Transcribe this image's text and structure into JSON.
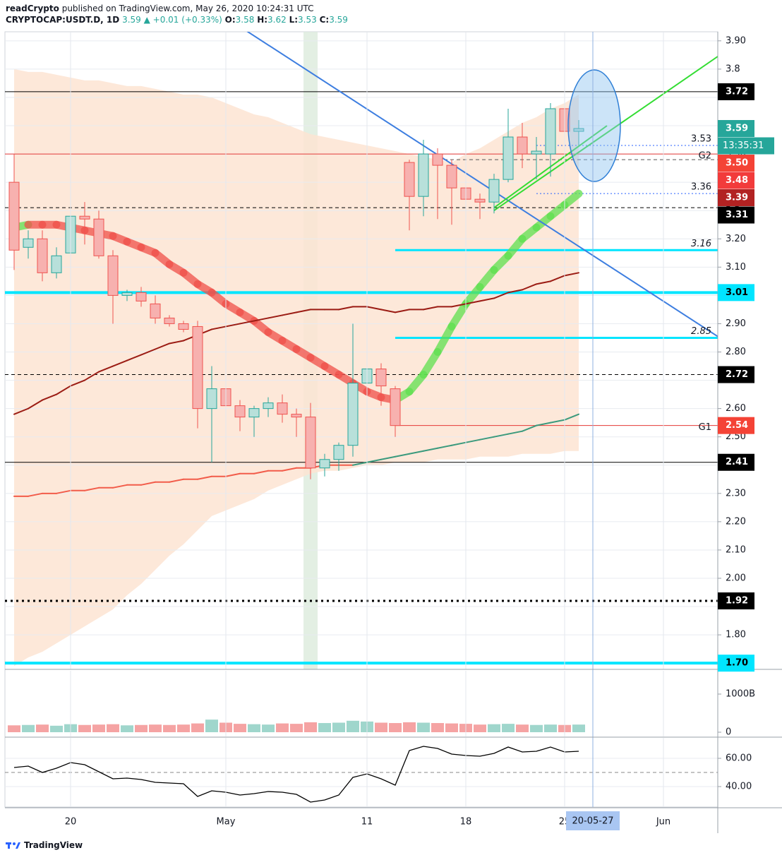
{
  "header": {
    "author": "readCrypto",
    "published": "published on TradingView.com, May 26, 2020 10:24:31 UTC",
    "symbol": "CRYPTOCAP:USDT.D, 1D",
    "last": 3.59,
    "change": {
      "value": 0.01,
      "label": "+0.01"
    },
    "change_pct": {
      "value": 0.33,
      "label": "(+0.33%)"
    },
    "ohlc": [
      {
        "name": "O:",
        "value": 3.58
      },
      {
        "name": "H:",
        "value": 3.62
      },
      {
        "name": "L:",
        "value": 3.53
      },
      {
        "name": "C:",
        "value": 3.59
      }
    ]
  },
  "footer": "TradingView",
  "chart_data": [
    {
      "type": "candlestick",
      "x": [
        "20-04-16",
        "20-04-17",
        "20-04-18",
        "20-04-19",
        "20-04-20",
        "20-04-21",
        "20-04-22",
        "20-04-23",
        "20-04-24",
        "20-04-25",
        "20-04-26",
        "20-04-27",
        "20-04-28",
        "20-04-29",
        "20-04-30",
        "20-05-01",
        "20-05-02",
        "20-05-03",
        "20-05-04",
        "20-05-05",
        "20-05-06",
        "20-05-07",
        "20-05-08",
        "20-05-09",
        "20-05-10",
        "20-05-11",
        "20-05-12",
        "20-05-13",
        "20-05-14",
        "20-05-15",
        "20-05-16",
        "20-05-17",
        "20-05-18",
        "20-05-19",
        "20-05-20",
        "20-05-21",
        "20-05-22",
        "20-05-23",
        "20-05-24",
        "20-05-25",
        "20-05-26"
      ],
      "open": [
        3.4,
        3.17,
        3.2,
        3.08,
        3.15,
        3.28,
        3.27,
        3.14,
        3.0,
        3.01,
        2.97,
        2.92,
        2.9,
        2.89,
        2.6,
        2.67,
        2.61,
        2.57,
        2.6,
        2.62,
        2.58,
        2.57,
        2.39,
        2.42,
        2.47,
        2.69,
        2.74,
        2.67,
        3.47,
        3.35,
        3.5,
        3.46,
        3.38,
        3.34,
        3.33,
        3.41,
        3.56,
        3.5,
        3.5,
        3.66,
        3.58
      ],
      "high": [
        3.5,
        3.23,
        3.23,
        3.17,
        3.3,
        3.33,
        3.3,
        3.16,
        3.02,
        3.03,
        3.0,
        2.93,
        2.91,
        2.91,
        2.75,
        2.69,
        2.63,
        2.61,
        2.64,
        2.65,
        2.6,
        2.62,
        2.44,
        2.48,
        2.9,
        2.89,
        2.76,
        2.68,
        3.48,
        3.55,
        3.52,
        3.48,
        3.4,
        3.36,
        3.43,
        3.66,
        3.61,
        3.56,
        3.68,
        3.7,
        3.62
      ],
      "low": [
        3.09,
        3.13,
        3.05,
        3.06,
        3.14,
        3.18,
        3.13,
        2.9,
        2.98,
        2.96,
        2.9,
        2.89,
        2.87,
        2.53,
        2.41,
        2.53,
        2.52,
        2.5,
        2.57,
        2.55,
        2.5,
        2.35,
        2.36,
        2.38,
        2.43,
        2.62,
        2.61,
        2.5,
        3.23,
        3.28,
        3.27,
        3.25,
        3.28,
        3.27,
        3.29,
        3.4,
        3.45,
        3.41,
        3.42,
        3.5,
        3.53
      ],
      "close": [
        3.16,
        3.2,
        3.08,
        3.14,
        3.28,
        3.27,
        3.14,
        3.0,
        3.01,
        2.98,
        2.92,
        2.9,
        2.88,
        2.6,
        2.67,
        2.61,
        2.57,
        2.6,
        2.62,
        2.58,
        2.57,
        2.39,
        2.42,
        2.47,
        2.69,
        2.74,
        2.68,
        2.54,
        3.35,
        3.5,
        3.46,
        3.38,
        3.34,
        3.33,
        3.41,
        3.56,
        3.5,
        3.51,
        3.66,
        3.58,
        3.59
      ],
      "up_color": "#26a69a",
      "up_fill": "#b8e0da",
      "down_color": "#ef5350",
      "down_fill": "#f7b1af",
      "overlays": [
        {
          "type": "area",
          "color": "#fde4d2",
          "upper": [
            3.8,
            3.79,
            3.79,
            3.78,
            3.77,
            3.76,
            3.76,
            3.75,
            3.74,
            3.74,
            3.73,
            3.72,
            3.71,
            3.71,
            3.7,
            3.68,
            3.66,
            3.64,
            3.63,
            3.61,
            3.59,
            3.57,
            3.56,
            3.55,
            3.54,
            3.53,
            3.52,
            3.51,
            3.5,
            3.49,
            3.48,
            3.47,
            3.5,
            3.52,
            3.55,
            3.58,
            3.61,
            3.63,
            3.66,
            3.68,
            3.71
          ],
          "lower": [
            1.69,
            1.72,
            1.74,
            1.77,
            1.8,
            1.83,
            1.86,
            1.89,
            1.94,
            1.98,
            2.03,
            2.08,
            2.12,
            2.17,
            2.22,
            2.24,
            2.26,
            2.28,
            2.31,
            2.33,
            2.35,
            2.37,
            2.38,
            2.38,
            2.39,
            2.4,
            2.4,
            2.41,
            2.41,
            2.41,
            2.42,
            2.42,
            2.42,
            2.43,
            2.43,
            2.43,
            2.44,
            2.44,
            2.44,
            2.45,
            2.45
          ]
        },
        {
          "type": "ribbon",
          "color": "#f0504a",
          "up_color": "#5fe04f",
          "values": [
            3.24,
            3.25,
            3.25,
            3.25,
            3.24,
            3.23,
            3.22,
            3.21,
            3.19,
            3.17,
            3.15,
            3.11,
            3.08,
            3.04,
            3.01,
            2.97,
            2.94,
            2.91,
            2.87,
            2.84,
            2.81,
            2.78,
            2.75,
            2.72,
            2.69,
            2.66,
            2.64,
            2.63,
            2.66,
            2.72,
            2.8,
            2.89,
            2.97,
            3.03,
            3.09,
            3.14,
            3.2,
            3.24,
            3.28,
            3.32,
            3.36
          ]
        },
        {
          "type": "line",
          "color": "#9b1c14",
          "values": [
            2.58,
            2.6,
            2.63,
            2.65,
            2.68,
            2.7,
            2.73,
            2.75,
            2.77,
            2.79,
            2.81,
            2.83,
            2.84,
            2.86,
            2.88,
            2.89,
            2.9,
            2.91,
            2.92,
            2.93,
            2.94,
            2.95,
            2.95,
            2.95,
            2.96,
            2.96,
            2.95,
            2.94,
            2.95,
            2.95,
            2.96,
            2.96,
            2.97,
            2.98,
            2.99,
            3.01,
            3.02,
            3.04,
            3.05,
            3.07,
            3.08
          ]
        },
        {
          "type": "line",
          "color": "#f25c4a",
          "color_after": "#3b9a7d",
          "after": "20-05-10",
          "values": [
            2.29,
            2.29,
            2.3,
            2.3,
            2.31,
            2.31,
            2.32,
            2.32,
            2.33,
            2.33,
            2.34,
            2.34,
            2.35,
            2.35,
            2.36,
            2.36,
            2.37,
            2.37,
            2.38,
            2.38,
            2.39,
            2.39,
            2.4,
            2.4,
            2.4,
            2.41,
            2.42,
            2.43,
            2.44,
            2.45,
            2.46,
            2.47,
            2.48,
            2.49,
            2.5,
            2.51,
            2.52,
            2.54,
            2.55,
            2.56,
            2.58
          ]
        }
      ],
      "levels": [
        {
          "value": 3.72,
          "color": "#000000",
          "dash": "solid"
        },
        {
          "value": 3.53,
          "color": "#2962ff",
          "dash": "dotted",
          "start": "20-05-23",
          "show_value": true
        },
        {
          "value": 3.5,
          "color": "#e53935",
          "dash": "solid",
          "label": "G2"
        },
        {
          "value": 3.48,
          "color": "#555555",
          "dash": "dashed",
          "start": "20-05-16"
        },
        {
          "value": 3.36,
          "color": "#2962ff",
          "dash": "dotted",
          "start": "20-05-23",
          "show_value": true
        },
        {
          "value": 3.31,
          "color": "#000000",
          "dash": "dashed"
        },
        {
          "value": 3.16,
          "color": "#00e5ff",
          "dash": "solid",
          "start": "20-05-13",
          "show_value": true,
          "width": 3
        },
        {
          "value": 3.01,
          "color": "#00e5ff",
          "dash": "solid",
          "width": 4
        },
        {
          "value": 2.85,
          "color": "#00e5ff",
          "dash": "solid",
          "start": "20-05-13",
          "show_value": true,
          "width": 3
        },
        {
          "value": 2.72,
          "color": "#000000",
          "dash": "dashed"
        },
        {
          "value": 2.54,
          "color": "#e53935",
          "dash": "solid",
          "start": "20-05-13",
          "label": "G1"
        },
        {
          "value": 2.41,
          "color": "#000000",
          "dash": "solid"
        },
        {
          "value": 1.92,
          "color": "#000000",
          "dash": "dotted",
          "width": 3
        },
        {
          "value": 1.7,
          "color": "#00e5ff",
          "dash": "solid",
          "width": 4
        }
      ],
      "trendlines": [
        {
          "points": [
            [
              "20-05-02",
              3.95
            ],
            [
              "20-06-05",
              2.85
            ]
          ],
          "color": "#3d7ee0"
        },
        {
          "points": [
            [
              "20-05-20",
              3.3
            ],
            [
              "20-06-05",
              3.85
            ]
          ],
          "color": "#33dd33"
        },
        {
          "points": [
            [
              "20-05-20",
              3.31
            ],
            [
              "20-05-28",
              3.6
            ]
          ],
          "color": "#33dd33"
        }
      ],
      "price_tags": [
        {
          "value": 3.72,
          "color": "#000000",
          "text_color": "#ffffff"
        },
        {
          "value": 3.59,
          "color": "#26a69a",
          "text_color": "#ffffff"
        },
        {
          "value": 3.5,
          "label": "3.50",
          "color": "#f44336",
          "text_color": "#ffffff"
        },
        {
          "value": 3.48,
          "color": "#f23b3b",
          "text_color": "#ffffff"
        },
        {
          "value": 3.39,
          "color": "#b22222",
          "text_color": "#ffffff"
        },
        {
          "value": 3.31,
          "color": "#000000",
          "text_color": "#ffffff"
        },
        {
          "value": 3.01,
          "color": "#00e5ff",
          "text_color": "#000000"
        },
        {
          "value": 2.72,
          "color": "#000000",
          "text_color": "#ffffff"
        },
        {
          "value": 2.54,
          "color": "#f44336",
          "text_color": "#ffffff"
        },
        {
          "value": 2.41,
          "color": "#000000",
          "text_color": "#ffffff"
        },
        {
          "value": 1.92,
          "color": "#000000",
          "text_color": "#ffffff"
        },
        {
          "value": 1.7,
          "label": "1.70",
          "color": "#00e5ff",
          "text_color": "#000000"
        }
      ],
      "countdown": "13:35:31",
      "crosshair": "20-05-27",
      "highlight_day": "20-05-07",
      "xlim": [
        "20-04-15",
        "20-06-05"
      ],
      "xticks": [
        {
          "value": "20-04-20",
          "label": "20"
        },
        {
          "value": "20-05-01",
          "label": "May"
        },
        {
          "value": "20-05-11",
          "label": "11"
        },
        {
          "value": "20-05-18",
          "label": "18"
        },
        {
          "value": "20-05-25",
          "label": "25"
        },
        {
          "value": "20-06-01",
          "label": "Jun"
        }
      ],
      "ylim": [
        1.678,
        3.932
      ],
      "yticks": [
        {
          "value": 3.9,
          "label": "3.90"
        },
        3.8,
        3.7,
        3.6,
        {
          "value": 3.5,
          "label": "3.50"
        },
        3.4,
        3.3,
        {
          "value": 3.2,
          "label": "3.20"
        },
        {
          "value": 3.1,
          "label": "3.10"
        },
        {
          "value": 3.0,
          "label": "3.00"
        },
        {
          "value": 2.9,
          "label": "2.90"
        },
        {
          "value": 2.8,
          "label": "2.80"
        },
        2.7,
        {
          "value": 2.6,
          "label": "2.60"
        },
        {
          "value": 2.5,
          "label": "2.50"
        },
        {
          "value": 2.4,
          "label": "2.40"
        },
        {
          "value": 2.3,
          "label": "2.30"
        },
        {
          "value": 2.2,
          "label": "2.20"
        },
        {
          "value": 2.1,
          "label": "2.10"
        },
        {
          "value": 2.0,
          "label": "2.00"
        },
        1.9,
        {
          "value": 1.8,
          "label": "1.80"
        },
        {
          "value": 1.7,
          "label": "1.70"
        }
      ],
      "grid": true
    },
    {
      "type": "bar",
      "values": [
        180,
        190,
        200,
        170,
        210,
        190,
        200,
        210,
        180,
        190,
        200,
        190,
        200,
        230,
        330,
        250,
        220,
        210,
        200,
        230,
        220,
        260,
        240,
        250,
        300,
        280,
        250,
        240,
        260,
        250,
        240,
        230,
        220,
        200,
        210,
        220,
        200,
        190,
        200,
        190,
        200
      ],
      "up_color": "#9fd6cc",
      "down_color": "#f5a3a3",
      "ylim": [
        -111,
        1611
      ],
      "yticks": [
        {
          "value": 1000,
          "label": "1000B"
        },
        0
      ]
    },
    {
      "type": "line",
      "color": "#000000",
      "values": [
        53.5,
        54.5,
        50,
        53,
        57,
        55.5,
        50.5,
        45.5,
        46,
        45,
        43,
        42.5,
        42,
        33,
        37,
        36,
        34,
        35,
        36.5,
        36,
        34.5,
        29,
        30.5,
        34,
        46.5,
        49,
        45.5,
        41,
        65.5,
        68.5,
        67,
        63,
        62,
        61.5,
        63.5,
        68,
        64.5,
        65,
        68,
        64.5,
        65
      ],
      "midline": 50,
      "ylim": [
        25.5,
        74.5
      ],
      "yticks": [
        {
          "value": 60,
          "label": "60.00"
        },
        {
          "value": 40,
          "label": "40.00"
        }
      ]
    }
  ]
}
